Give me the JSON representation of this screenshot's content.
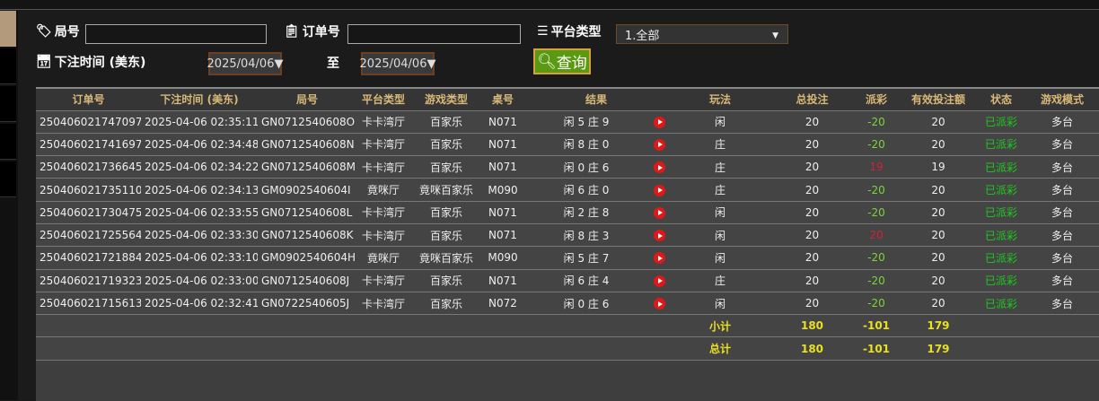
{
  "filters": {
    "round_label": "局号",
    "round_value": "",
    "order_label": "订单号",
    "order_value": "",
    "platform_label": "平台类型",
    "platform_value": "1.全部",
    "time_label": "下注时间 (美东)",
    "date_from": "2025/04/06▼",
    "to_label": "至",
    "date_to": "2025/04/06▼",
    "query_label": "查询"
  },
  "table": {
    "headers": [
      "订单号",
      "下注时间 (美东)",
      "局号",
      "平台类型",
      "游戏类型",
      "桌号",
      "结果",
      "玩法",
      "总投注",
      "派彩",
      "有效投注额",
      "状态",
      "游戏模式"
    ],
    "rows": [
      [
        "250406021747097",
        "2025-04-06 02:35:11",
        "GN0712540608O",
        "卡卡湾厅",
        "百家乐",
        "N071",
        "闲 5 庄 9",
        "闲",
        "20",
        "-20",
        "20",
        "已派彩",
        "多台"
      ],
      [
        "250406021741697",
        "2025-04-06 02:34:48",
        "GN0712540608N",
        "卡卡湾厅",
        "百家乐",
        "N071",
        "闲 8 庄 0",
        "庄",
        "20",
        "-20",
        "20",
        "已派彩",
        "多台"
      ],
      [
        "250406021736645",
        "2025-04-06 02:34:22",
        "GN0712540608M",
        "卡卡湾厅",
        "百家乐",
        "N071",
        "闲 0 庄 6",
        "庄",
        "20",
        "19",
        "19",
        "已派彩",
        "多台"
      ],
      [
        "250406021735110",
        "2025-04-06 02:34:13",
        "GM0902540604I",
        "竟咪厅",
        "竟咪百家乐",
        "M090",
        "闲 6 庄 0",
        "庄",
        "20",
        "-20",
        "20",
        "已派彩",
        "多台"
      ],
      [
        "250406021730475",
        "2025-04-06 02:33:55",
        "GN0712540608L",
        "卡卡湾厅",
        "百家乐",
        "N071",
        "闲 2 庄 8",
        "闲",
        "20",
        "-20",
        "20",
        "已派彩",
        "多台"
      ],
      [
        "250406021725564",
        "2025-04-06 02:33:30",
        "GN0712540608K",
        "卡卡湾厅",
        "百家乐",
        "N071",
        "闲 8 庄 3",
        "闲",
        "20",
        "20",
        "20",
        "已派彩",
        "多台"
      ],
      [
        "250406021721884",
        "2025-04-06 02:33:10",
        "GM0902540604H",
        "竟咪厅",
        "竟咪百家乐",
        "M090",
        "闲 5 庄 7",
        "闲",
        "20",
        "-20",
        "20",
        "已派彩",
        "多台"
      ],
      [
        "250406021719323",
        "2025-04-06 02:33:00",
        "GN0712540608J",
        "卡卡湾厅",
        "百家乐",
        "N071",
        "闲 6 庄 4",
        "庄",
        "20",
        "-20",
        "20",
        "已派彩",
        "多台"
      ],
      [
        "250406021715613",
        "2025-04-06 02:32:41",
        "GN0722540605J",
        "卡卡湾厅",
        "百家乐",
        "N072",
        "闲 0 庄 6",
        "闲",
        "20",
        "-20",
        "20",
        "已派彩",
        "多台"
      ]
    ],
    "subtotal": {
      "label": "小计",
      "total_bet": "180",
      "payout": "-101",
      "valid_bet": "179"
    },
    "total": {
      "label": "总计",
      "total_bet": "180",
      "payout": "-101",
      "valid_bet": "179"
    }
  },
  "colors": {
    "win": "#d0223a",
    "loss": "#7ad43a",
    "status": "#20c820",
    "totals": "#e8e020",
    "header_text": "#d8b878"
  }
}
